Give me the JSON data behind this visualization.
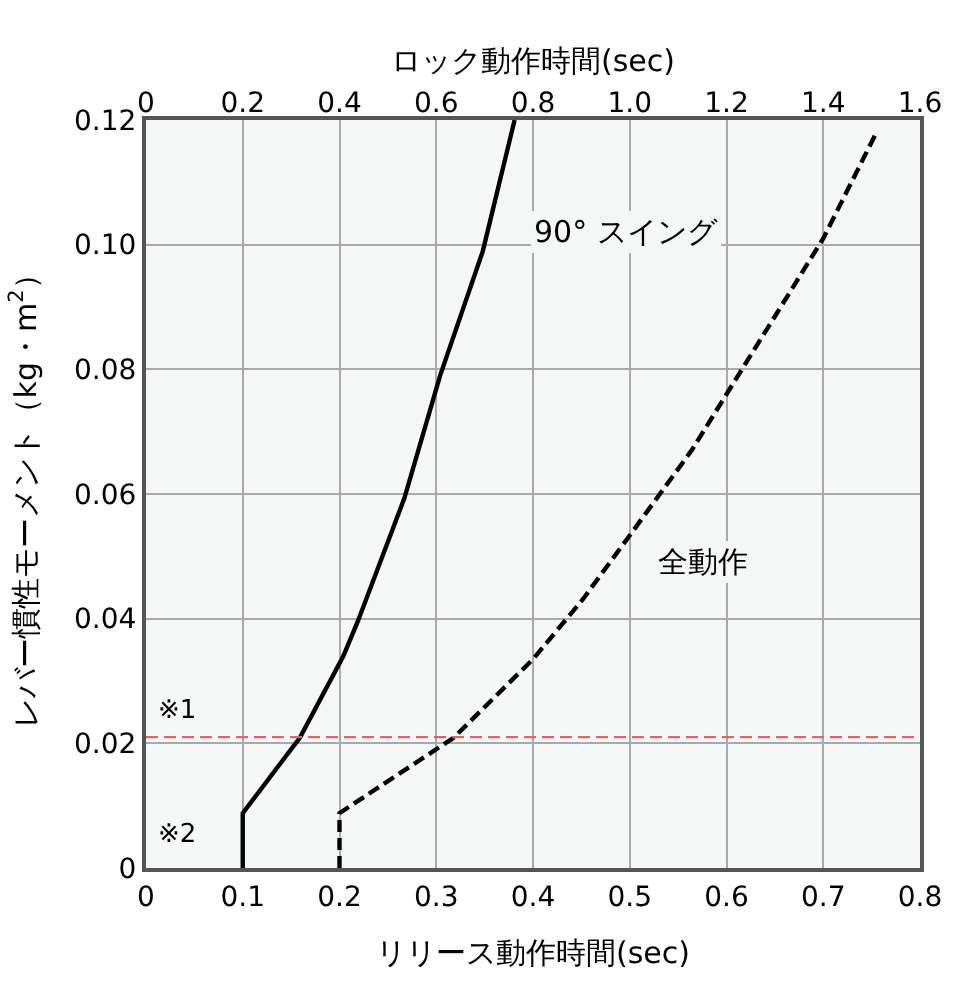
{
  "chart_data": {
    "type": "line",
    "xlabel": "リリース動作時間(sec)",
    "ylabel": "レバー慣性モーメント（kg・m$^{2}$）",
    "x2label": "ロック動作時間(sec)",
    "series": [
      {
        "name": "90° スイング",
        "color": "#000000",
        "line_style": "solid",
        "x": [
          0.1,
          0.1,
          0.159,
          0.204,
          0.219,
          0.267,
          0.304,
          0.348,
          0.381
        ],
        "values": [
          0,
          0.0088,
          0.0209,
          0.034,
          0.0396,
          0.0593,
          0.079,
          0.0989,
          0.12
        ]
      },
      {
        "name": "全動作",
        "color": "#000000",
        "line_style": "dashed",
        "x": [
          0.2,
          0.2,
          0.318,
          0.4,
          0.451,
          0.503,
          0.564,
          0.608,
          0.652,
          0.7,
          0.755
        ],
        "values": [
          0,
          0.0088,
          0.0209,
          0.0335,
          0.043,
          0.054,
          0.067,
          0.078,
          0.089,
          0.101,
          0.118
        ]
      }
    ],
    "xlim": [
      0,
      0.8
    ],
    "xticks": [
      0,
      0.1,
      0.2,
      0.3,
      0.4,
      0.5,
      0.6,
      0.7,
      0.8
    ],
    "x2lim": [
      0,
      1.6
    ],
    "x2ticks": [
      0,
      0.2,
      0.4,
      0.6,
      0.8,
      {
        "value": 1,
        "label": "1.0"
      },
      1.2,
      1.4,
      1.6
    ],
    "ylim": [
      0,
      0.12
    ],
    "yticks": [
      0,
      0.02,
      0.04,
      0.06,
      0.08,
      {
        "value": 0.1,
        "label": "0.10"
      },
      0.12
    ],
    "ref_lines": [
      {
        "axis": "y",
        "value": 0.021,
        "label": "※1",
        "color": "#e06666",
        "line_style": "dashed"
      }
    ],
    "annotations": [
      "※2"
    ],
    "grid": true,
    "legend": false,
    "marker": "none"
  }
}
